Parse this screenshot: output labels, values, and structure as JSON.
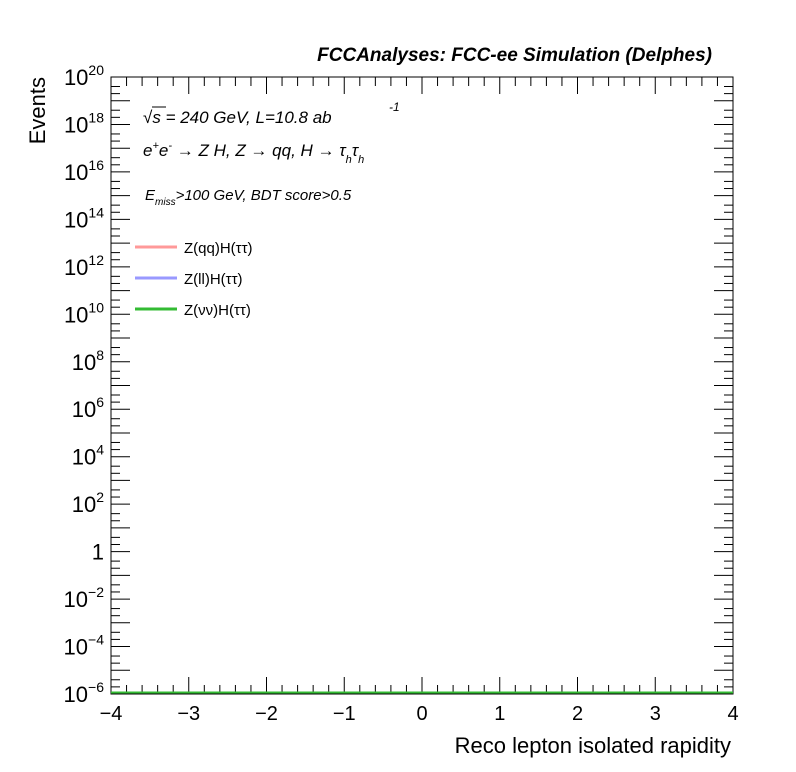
{
  "chart_data": {
    "type": "line",
    "title": "FCCAnalyses: FCC-ee Simulation (Delphes)",
    "xlabel": "Reco lepton isolated rapidity",
    "ylabel": "Events",
    "xlim": [
      -4,
      4
    ],
    "ylim": [
      1e-06,
      1e+20
    ],
    "ylog": true,
    "x_ticks": [
      "−4",
      "−3",
      "−2",
      "−1",
      "0",
      "1",
      "2",
      "3",
      "4"
    ],
    "y_ticks": [
      {
        "base": "10",
        "exp": "−6"
      },
      {
        "base": "10",
        "exp": "−4"
      },
      {
        "base": "10",
        "exp": "−2"
      },
      {
        "base": "1",
        "exp": ""
      },
      {
        "base": "10",
        "exp": "2"
      },
      {
        "base": "10",
        "exp": "4"
      },
      {
        "base": "10",
        "exp": "6"
      },
      {
        "base": "10",
        "exp": "8"
      },
      {
        "base": "10",
        "exp": "10"
      },
      {
        "base": "10",
        "exp": "12"
      },
      {
        "base": "10",
        "exp": "14"
      },
      {
        "base": "10",
        "exp": "16"
      },
      {
        "base": "10",
        "exp": "18"
      },
      {
        "base": "10",
        "exp": "20"
      }
    ],
    "annotations": {
      "energy": {
        "sqrt": "√",
        "s": "s",
        "rest": " = 240 GeV, L=10.8 ab",
        "sup": "-1"
      },
      "process": {
        "e": "e",
        "plus": "+",
        "e2": "e",
        "minus": "-",
        "body": " → Z H, Z  → qq, H  → τ",
        "sub1": "h",
        "tau2": "τ",
        "sub2": "h"
      },
      "selection": {
        "E": "E",
        "sub": "miss",
        "rest": ">100 GeV, BDT score>0.5"
      }
    },
    "legend_position": "top-left",
    "series": [
      {
        "name": "Z(qq)H(ττ)",
        "color": "#ff9999",
        "x": [
          -4,
          4
        ],
        "y": [
          1e-06,
          1e-06
        ]
      },
      {
        "name": "Z(ll)H(ττ)",
        "color": "#9999ff",
        "x": [
          -4,
          4
        ],
        "y": [
          1e-06,
          1e-06
        ]
      },
      {
        "name": "Z(νν)H(ττ)",
        "color": "#33bb33",
        "x": [
          -4,
          4
        ],
        "y": [
          1e-06,
          1e-06
        ]
      }
    ]
  }
}
